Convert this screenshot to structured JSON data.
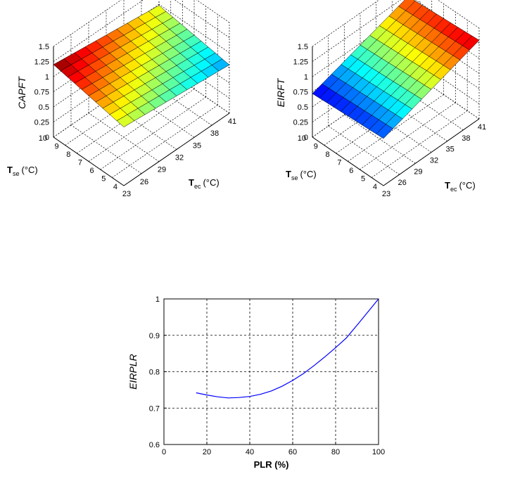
{
  "chart_data": [
    {
      "type": "surface3d",
      "zlabel": "CAPFT",
      "xlabel": "T_ec (°C)",
      "xlabel_main": "T",
      "xlabel_sub": "ec",
      "xlabel_unit": "(°C)",
      "ylabel": "T_se (°C)",
      "ylabel_main": "T",
      "ylabel_sub": "se",
      "ylabel_unit": "(°C)",
      "x_ticks": [
        "23",
        "26",
        "29",
        "32",
        "35",
        "38",
        "41"
      ],
      "y_ticks": [
        "4",
        "5",
        "6",
        "7",
        "8",
        "9",
        "10"
      ],
      "z_ticks": [
        "0",
        "0.25",
        "0.5",
        "0.75",
        "1",
        "1.25",
        "1.5"
      ],
      "xlim": [
        23,
        41
      ],
      "ylim": [
        4,
        10
      ],
      "zlim": [
        0,
        1.5
      ],
      "corners": {
        "x23_y4": 0.97,
        "x41_y4": 0.8,
        "x23_y10": 1.2,
        "x41_y10": 0.98
      },
      "colormap": "jet",
      "color_range": [
        0.65,
        1.2
      ]
    },
    {
      "type": "surface3d",
      "zlabel": "EIRFT",
      "xlabel": "T_ec (°C)",
      "xlabel_main": "T",
      "xlabel_sub": "ec",
      "xlabel_unit": "(°C)",
      "ylabel": "T_se (°C)",
      "ylabel_main": "T",
      "ylabel_sub": "se",
      "ylabel_unit": "(°C)",
      "x_ticks": [
        "23",
        "26",
        "29",
        "32",
        "35",
        "38",
        "41"
      ],
      "y_ticks": [
        "4",
        "5",
        "6",
        "7",
        "8",
        "9",
        "10"
      ],
      "z_ticks": [
        "0",
        "0.25",
        "0.5",
        "0.75",
        "1",
        "1.25",
        "1.5"
      ],
      "xlim": [
        23,
        41
      ],
      "ylim": [
        4,
        10
      ],
      "zlim": [
        0,
        1.5
      ],
      "corners": {
        "x23_y4": 0.78,
        "x41_y4": 1.3,
        "x23_y10": 0.72,
        "x41_y10": 1.22
      },
      "colormap": "jet",
      "color_range": [
        0.65,
        1.35
      ]
    },
    {
      "type": "line",
      "xlabel": "PLR (%)",
      "ylabel": "EIRPLR",
      "xlim": [
        0,
        100
      ],
      "ylim": [
        0.6,
        1.0
      ],
      "x_ticks": [
        "0",
        "20",
        "40",
        "60",
        "80",
        "100"
      ],
      "y_ticks": [
        "0.6",
        "0.7",
        "0.8",
        "0.9",
        "1"
      ],
      "grid": true,
      "series": [
        {
          "name": "EIRPLR",
          "color": "#0000ff",
          "x": [
            15,
            20,
            25,
            30,
            35,
            40,
            45,
            50,
            55,
            60,
            65,
            70,
            75,
            80,
            85,
            90,
            95,
            100
          ],
          "y": [
            0.742,
            0.736,
            0.731,
            0.728,
            0.729,
            0.732,
            0.738,
            0.747,
            0.76,
            0.776,
            0.795,
            0.817,
            0.841,
            0.866,
            0.893,
            0.928,
            0.964,
            1.0
          ]
        }
      ]
    }
  ]
}
